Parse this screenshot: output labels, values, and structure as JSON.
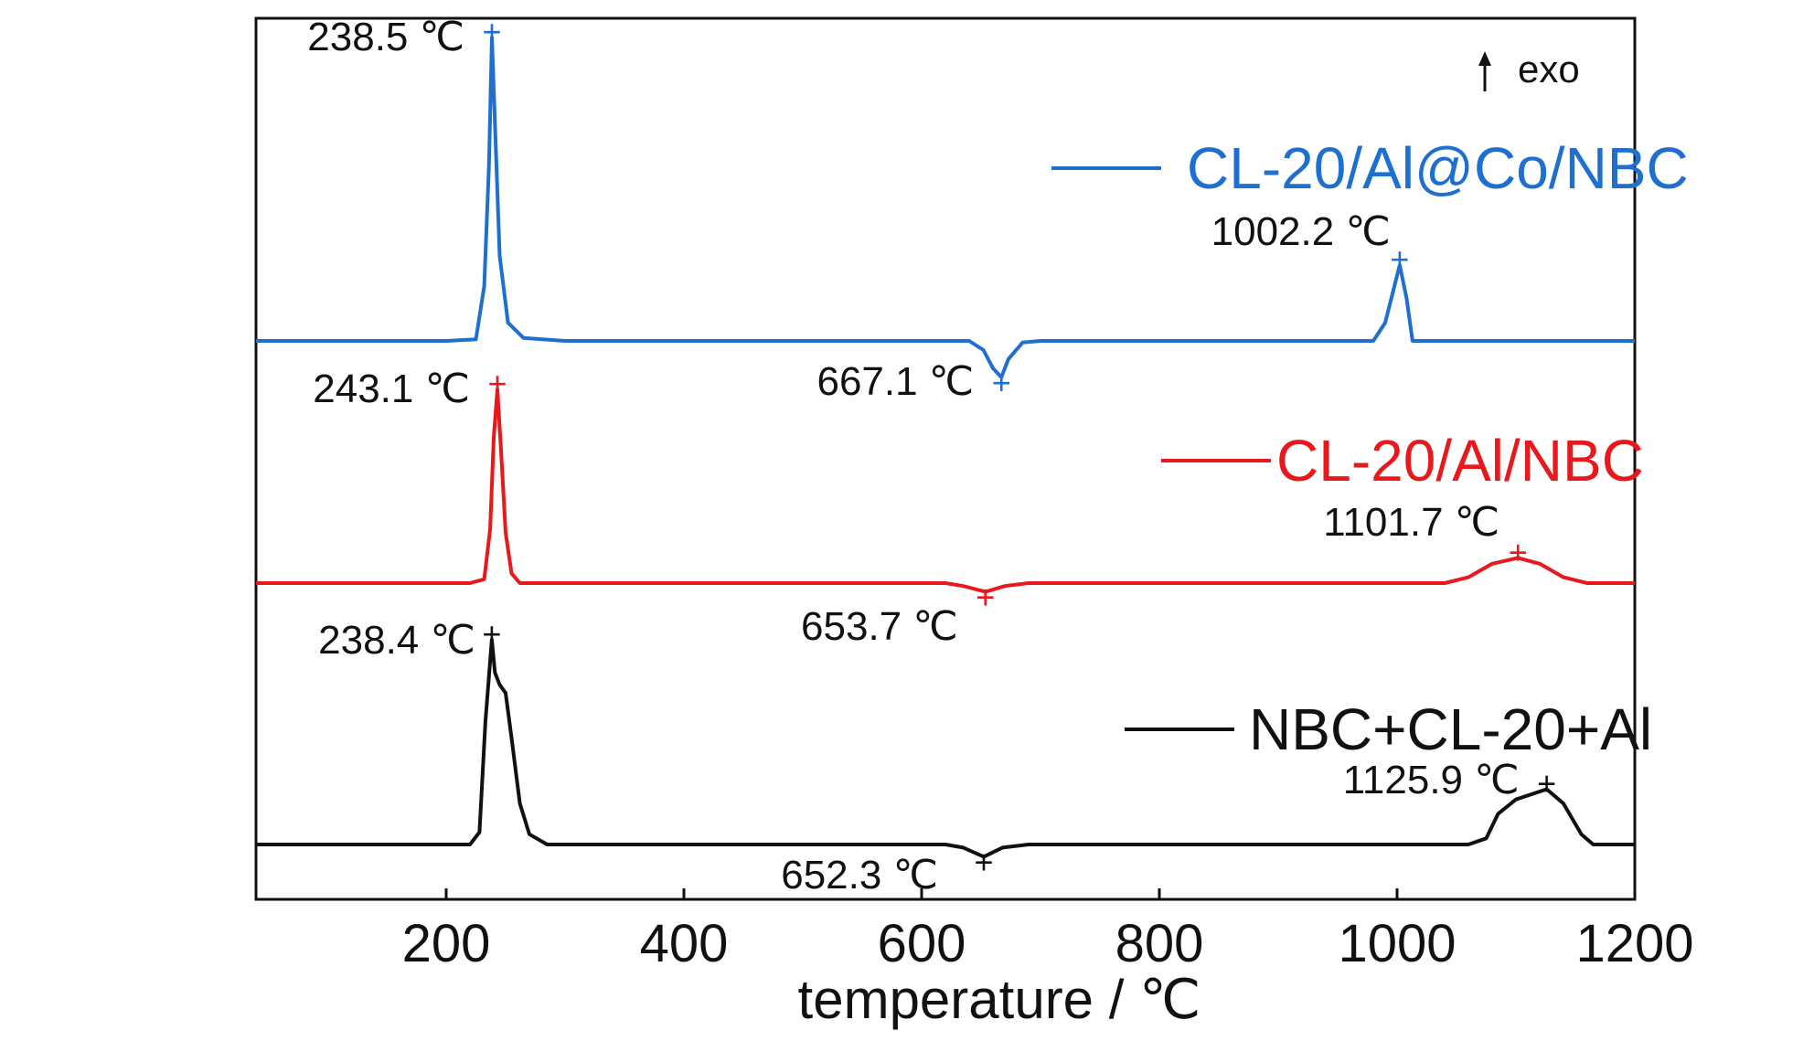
{
  "chart_data": {
    "type": "line",
    "title": "",
    "xlabel": "temperature / ℃",
    "ylabel": "",
    "xlim": [
      40,
      1200
    ],
    "xticks": [
      200,
      400,
      600,
      800,
      1000,
      1200
    ],
    "grid": false,
    "legend_placement": "right, beside each curve",
    "exo_label": "exo",
    "series": [
      {
        "name": "CL-20/Al@Co/NBC",
        "color": "#1f6fd1",
        "points": [
          [
            40,
            0
          ],
          [
            200,
            0
          ],
          [
            225,
            0.5
          ],
          [
            232,
            18
          ],
          [
            236,
            58
          ],
          [
            238.5,
            100
          ],
          [
            241,
            72
          ],
          [
            245,
            28
          ],
          [
            252,
            6
          ],
          [
            265,
            1
          ],
          [
            300,
            0
          ],
          [
            500,
            0
          ],
          [
            640,
            0
          ],
          [
            652,
            -3
          ],
          [
            660,
            -9
          ],
          [
            667.1,
            -12
          ],
          [
            673,
            -6
          ],
          [
            685,
            -0.5
          ],
          [
            700,
            0
          ],
          [
            950,
            0
          ],
          [
            980,
            0
          ],
          [
            990,
            6
          ],
          [
            1002.2,
            25
          ],
          [
            1008,
            14
          ],
          [
            1013,
            0
          ],
          [
            1100,
            0
          ],
          [
            1200,
            0
          ]
        ],
        "annotations": [
          {
            "x": 238.5,
            "text": "238.5 ℃",
            "kind": "peak"
          },
          {
            "x": 667.1,
            "text": "667.1 ℃",
            "kind": "valley"
          },
          {
            "x": 1002.2,
            "text": "1002.2 ℃",
            "kind": "peak"
          }
        ]
      },
      {
        "name": "CL-20/Al/NBC",
        "color": "#e8181c",
        "points": [
          [
            40,
            0
          ],
          [
            220,
            0
          ],
          [
            232,
            2
          ],
          [
            237,
            28
          ],
          [
            240,
            75
          ],
          [
            243.1,
            100
          ],
          [
            246,
            70
          ],
          [
            250,
            26
          ],
          [
            255,
            5
          ],
          [
            262,
            0
          ],
          [
            400,
            0
          ],
          [
            620,
            0
          ],
          [
            635,
            -1.5
          ],
          [
            653.7,
            -4.5
          ],
          [
            670,
            -1.5
          ],
          [
            690,
            0
          ],
          [
            1000,
            0
          ],
          [
            1040,
            0
          ],
          [
            1060,
            3
          ],
          [
            1080,
            10
          ],
          [
            1101.7,
            13
          ],
          [
            1120,
            10
          ],
          [
            1140,
            3
          ],
          [
            1160,
            0
          ],
          [
            1200,
            0
          ]
        ],
        "annotations": [
          {
            "x": 243.1,
            "text": "243.1 ℃",
            "kind": "peak"
          },
          {
            "x": 653.7,
            "text": "653.7 ℃",
            "kind": "valley"
          },
          {
            "x": 1101.7,
            "text": "1101.7 ℃",
            "kind": "peak"
          }
        ]
      },
      {
        "name": "NBC+CL-20+Al",
        "color": "#111111",
        "points": [
          [
            40,
            0
          ],
          [
            220,
            0
          ],
          [
            228,
            6
          ],
          [
            233,
            60
          ],
          [
            238.4,
            100
          ],
          [
            241,
            84
          ],
          [
            245,
            78
          ],
          [
            250,
            74
          ],
          [
            255,
            52
          ],
          [
            262,
            20
          ],
          [
            270,
            5
          ],
          [
            285,
            0
          ],
          [
            400,
            0
          ],
          [
            620,
            0
          ],
          [
            635,
            -1.5
          ],
          [
            652.3,
            -6
          ],
          [
            668,
            -1.5
          ],
          [
            690,
            0
          ],
          [
            1000,
            0
          ],
          [
            1060,
            0
          ],
          [
            1075,
            3
          ],
          [
            1085,
            15
          ],
          [
            1100,
            22
          ],
          [
            1125.9,
            27
          ],
          [
            1140,
            20
          ],
          [
            1155,
            5
          ],
          [
            1165,
            0
          ],
          [
            1200,
            0
          ]
        ],
        "annotations": [
          {
            "x": 238.4,
            "text": "238.4 ℃",
            "kind": "peak"
          },
          {
            "x": 652.3,
            "text": "652.3 ℃",
            "kind": "valley"
          },
          {
            "x": 1125.9,
            "text": "1125.9 ℃",
            "kind": "peak"
          }
        ]
      }
    ]
  }
}
